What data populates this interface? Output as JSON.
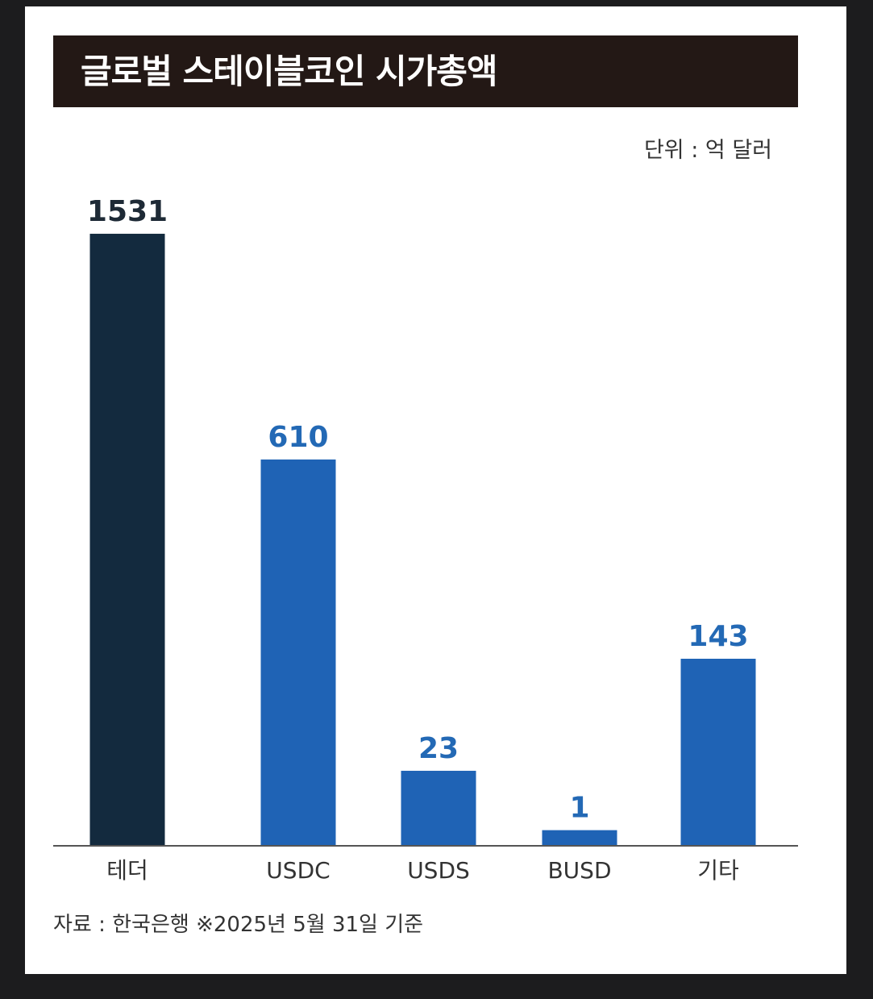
{
  "chart_data": {
    "type": "bar",
    "title": "글로벌 스테이블코인 시가총액",
    "unit_label": "단위 : 억 달러",
    "source_note": "자료 : 한국은행 ※2025년 5월 31일 기준",
    "categories": [
      "테더",
      "USDC",
      "USDS",
      "BUSD",
      "기타"
    ],
    "values": [
      1531,
      610,
      23,
      1,
      143
    ],
    "value_labels": [
      "1531",
      "610",
      "23",
      "1",
      "143"
    ],
    "colors": [
      "#132a3e",
      "#1f63b5",
      "#1f63b5",
      "#1f63b5",
      "#1f63b5"
    ],
    "label_colors": [
      "#1e2a36",
      "#2369b5",
      "#2369b5",
      "#2369b5",
      "#2369b5"
    ],
    "grid": false,
    "legend": "none"
  }
}
